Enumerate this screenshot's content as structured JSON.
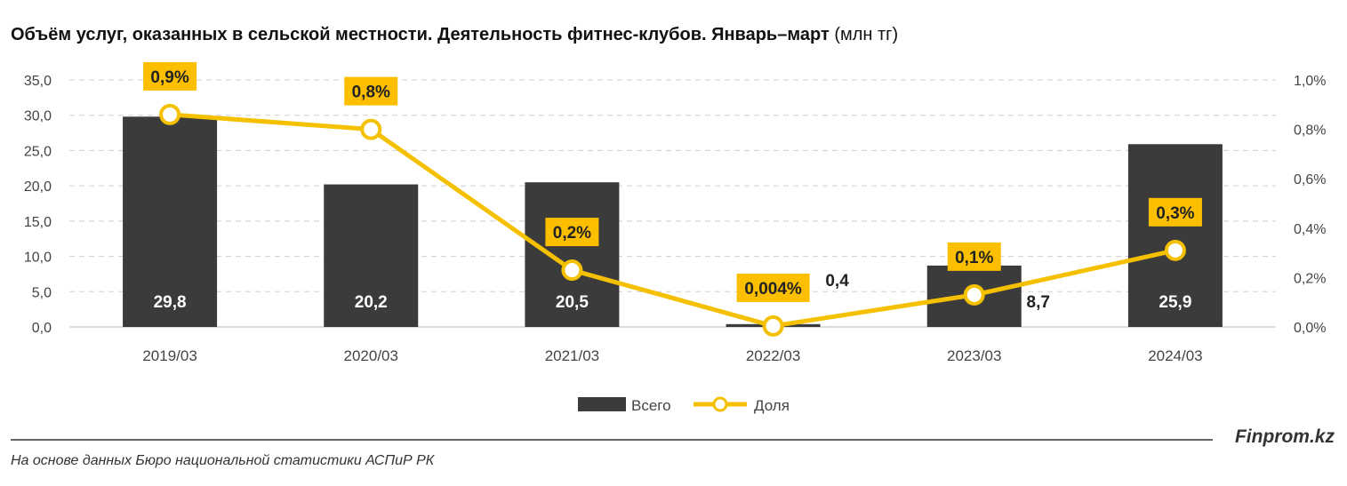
{
  "chart_data": {
    "type": "bar+line",
    "title": "Объём услуг, оказанных в сельской местности. Деятельность фитнес-клубов. Январь–март",
    "unit": "(млн тг)",
    "categories": [
      "2019/03",
      "2020/03",
      "2021/03",
      "2022/03",
      "2023/03",
      "2024/03"
    ],
    "series": [
      {
        "name": "Всего",
        "type": "bar",
        "axis": "left",
        "values": [
          29.8,
          20.2,
          20.5,
          0.4,
          8.7,
          25.9
        ],
        "labels": [
          "29,8",
          "20,2",
          "20,5",
          "0,4",
          "8,7",
          "25,9"
        ],
        "color": "#3b3b3b"
      },
      {
        "name": "Доля",
        "type": "line",
        "axis": "right",
        "values": [
          0.86,
          0.8,
          0.23,
          0.004,
          0.13,
          0.31
        ],
        "labels": [
          "0,9%",
          "0,8%",
          "0,2%",
          "0,004%",
          "0,1%",
          "0,3%"
        ],
        "color": "#f5c000"
      }
    ],
    "ylim_left": [
      0,
      35
    ],
    "yticks_left": [
      "0,0",
      "5,0",
      "10,0",
      "15,0",
      "20,0",
      "25,0",
      "30,0",
      "35,0"
    ],
    "ylim_right": [
      0,
      1.0
    ],
    "yticks_right": [
      "0,0%",
      "0,2%",
      "0,4%",
      "0,6%",
      "0,8%",
      "1,0%"
    ],
    "grid": true,
    "legend": "bottom"
  },
  "footer": {
    "brand": "Finprom.kz",
    "source": "На основе данных Бюро национальной статистики АСПиР РК"
  }
}
